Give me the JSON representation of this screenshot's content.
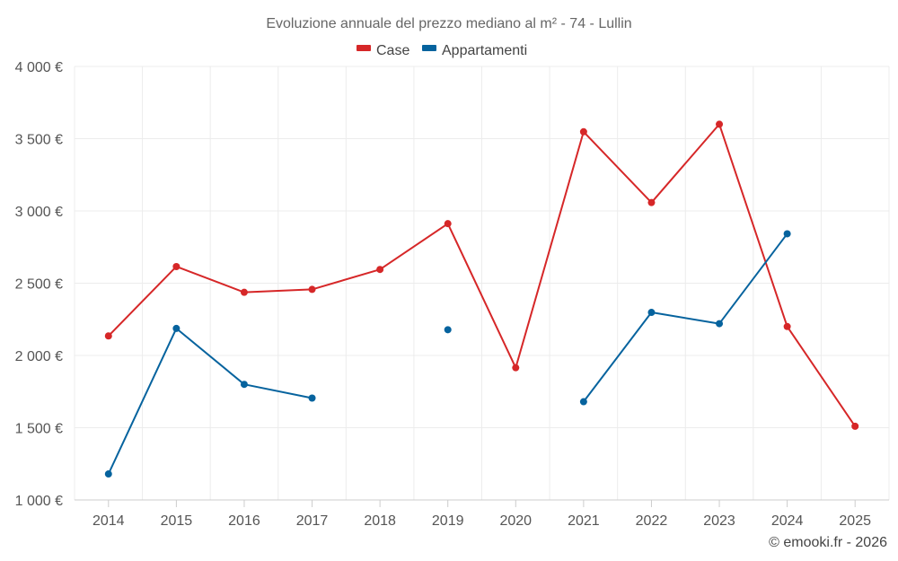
{
  "chart_data": {
    "type": "line",
    "title": "Evoluzione annuale del prezzo mediano al m² - 74 - Lullin",
    "xlabel": "",
    "ylabel": "",
    "categories": [
      "2014",
      "2015",
      "2016",
      "2017",
      "2018",
      "2019",
      "2020",
      "2021",
      "2022",
      "2023",
      "2024",
      "2025"
    ],
    "ylim": [
      1000,
      4000
    ],
    "yticks": [
      1000,
      1500,
      2000,
      2500,
      3000,
      3500,
      4000
    ],
    "ytick_labels": [
      "1 000 €",
      "1 500 €",
      "2 000 €",
      "2 500 €",
      "3 000 €",
      "3 500 €",
      "4 000 €"
    ],
    "legend_position": "top-center",
    "grid": true,
    "series": [
      {
        "name": "Case",
        "color": "#d62728",
        "values": [
          2135,
          2615,
          2437,
          2457,
          2595,
          2912,
          1915,
          3548,
          3058,
          3600,
          2200,
          1510
        ]
      },
      {
        "name": "Appartamenti",
        "color": "#06639e",
        "values": [
          1180,
          2187,
          1800,
          1705,
          null,
          2178,
          null,
          1680,
          2298,
          2220,
          2842,
          null
        ]
      }
    ]
  },
  "credit": "© emooki.fr - 2026"
}
